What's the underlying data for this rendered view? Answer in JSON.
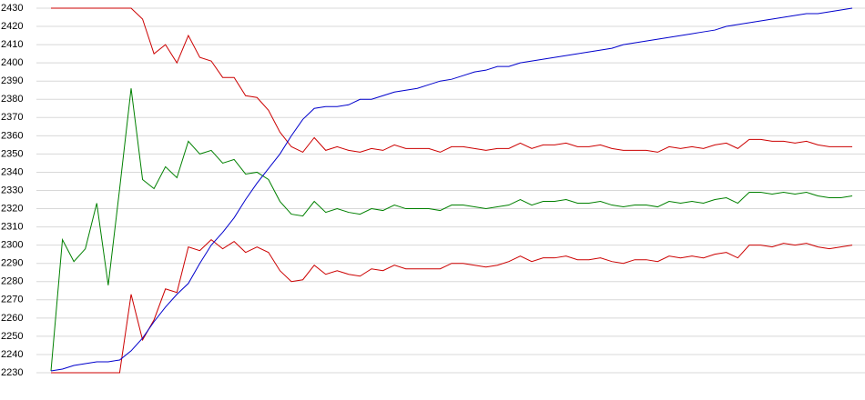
{
  "chart_data": {
    "type": "line",
    "ylim": [
      2230,
      2430
    ],
    "yticks": [
      2230,
      2240,
      2250,
      2260,
      2270,
      2280,
      2290,
      2300,
      2310,
      2320,
      2330,
      2340,
      2350,
      2360,
      2370,
      2380,
      2390,
      2400,
      2410,
      2420,
      2430
    ],
    "grid": true,
    "series": [
      {
        "color": "#cc0000",
        "values": [
          2430,
          2430,
          2430,
          2430,
          2430,
          2430,
          2430,
          2430,
          2424,
          2405,
          2410,
          2400,
          2415,
          2403,
          2401,
          2392,
          2392,
          2382,
          2381,
          2374,
          2362,
          2354,
          2351,
          2359,
          2352,
          2354,
          2352,
          2351,
          2353,
          2352,
          2355,
          2353,
          2353,
          2353,
          2351,
          2354,
          2354,
          2353,
          2352,
          2353,
          2353,
          2356,
          2353,
          2355,
          2355,
          2356,
          2354,
          2354,
          2355,
          2353,
          2352,
          2352,
          2352,
          2351,
          2354,
          2353,
          2354,
          2353,
          2355,
          2356,
          2353,
          2358,
          2358,
          2357,
          2357,
          2356,
          2357,
          2355,
          2354,
          2354,
          2354
        ]
      },
      {
        "color": "#008000",
        "values": [
          2231,
          2303,
          2291,
          2298,
          2323,
          2278,
          2331,
          2386,
          2336,
          2331,
          2343,
          2337,
          2357,
          2350,
          2352,
          2345,
          2347,
          2339,
          2340,
          2336,
          2324,
          2317,
          2316,
          2324,
          2318,
          2320,
          2318,
          2317,
          2320,
          2319,
          2322,
          2320,
          2320,
          2320,
          2319,
          2322,
          2322,
          2321,
          2320,
          2321,
          2322,
          2325,
          2322,
          2324,
          2324,
          2325,
          2323,
          2323,
          2324,
          2322,
          2321,
          2322,
          2322,
          2321,
          2324,
          2323,
          2324,
          2323,
          2325,
          2326,
          2323,
          2329,
          2329,
          2328,
          2329,
          2328,
          2329,
          2327,
          2326,
          2326,
          2327
        ]
      },
      {
        "color": "#cc0000",
        "values": [
          2230,
          2230,
          2230,
          2230,
          2230,
          2230,
          2230,
          2273,
          2248,
          2259,
          2276,
          2274,
          2299,
          2297,
          2303,
          2298,
          2302,
          2296,
          2299,
          2296,
          2286,
          2280,
          2281,
          2289,
          2284,
          2286,
          2284,
          2283,
          2287,
          2286,
          2289,
          2287,
          2287,
          2287,
          2287,
          2290,
          2290,
          2289,
          2288,
          2289,
          2291,
          2294,
          2291,
          2293,
          2293,
          2294,
          2292,
          2292,
          2293,
          2291,
          2290,
          2292,
          2292,
          2291,
          2294,
          2293,
          2294,
          2293,
          2295,
          2296,
          2293,
          2300,
          2300,
          2299,
          2301,
          2300,
          2301,
          2299,
          2298,
          2299,
          2300
        ]
      },
      {
        "color": "#0000cc",
        "values": [
          2231,
          2232,
          2234,
          2235,
          2236,
          2236,
          2237,
          2242,
          2249,
          2258,
          2266,
          2273,
          2279,
          2290,
          2300,
          2307,
          2315,
          2325,
          2334,
          2342,
          2350,
          2360,
          2369,
          2375,
          2376,
          2376,
          2377,
          2380,
          2380,
          2382,
          2384,
          2385,
          2386,
          2388,
          2390,
          2391,
          2393,
          2395,
          2396,
          2398,
          2398,
          2400,
          2401,
          2402,
          2403,
          2404,
          2405,
          2406,
          2407,
          2408,
          2410,
          2411,
          2412,
          2413,
          2414,
          2415,
          2416,
          2417,
          2418,
          2420,
          2421,
          2422,
          2423,
          2424,
          2425,
          2426,
          2427,
          2427,
          2428,
          2429,
          2430
        ]
      }
    ]
  }
}
